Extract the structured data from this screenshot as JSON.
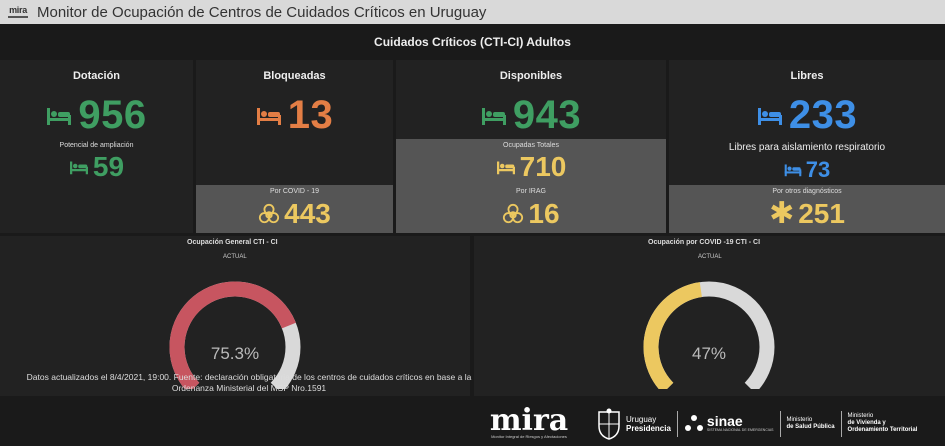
{
  "app": {
    "logo_text": "mira",
    "title": "Monitor de Ocupación de Centros de Cuidados Críticos en Uruguay"
  },
  "dashboard": {
    "header": "Cuidados Críticos (CTI-CI) Adultos",
    "columns": {
      "dotacion": "Dotación",
      "bloqueadas": "Bloqueadas",
      "disponibles": "Disponibles",
      "libres": "Libres"
    },
    "values": {
      "dotacion": "956",
      "bloqueadas": "13",
      "disponibles": "943",
      "libres": "233"
    },
    "ampliacion": {
      "label": "Potencial de ampliación",
      "value": "59"
    },
    "ocupadas": {
      "label": "Ocupadas Totales",
      "value": "710"
    },
    "aislamiento": {
      "label": "Libres para aislamiento respiratorio",
      "value": "73"
    },
    "covid": {
      "label": "Por COVID - 19",
      "value": "443"
    },
    "irag": {
      "label": "Por IRAG",
      "value": "16"
    },
    "otros": {
      "label": "Por otros diagnósticos",
      "value": "251"
    },
    "gauges": [
      {
        "title": "Ocupación General CTI - CI",
        "subtitle": "ACTUAL",
        "value_label": "75.3%",
        "fraction": 0.753,
        "color": "#c75560"
      },
      {
        "title": "Ocupación por COVID -19 CTI - CI",
        "subtitle": "ACTUAL",
        "value_label": "47%",
        "fraction": 0.47,
        "color": "#ecc860"
      }
    ],
    "footnote": "Datos actualizados el 8/4/2021, 19:00. Fuente: declaración obligatoria de los centros de cuidados críticos en base a la Ordenanza Ministerial del MSP Nro.1591"
  },
  "logos": {
    "mira": "mira",
    "mira_caption": "Monitor Integral de Riesgos y Afectaciones",
    "uruguay": "Uruguay",
    "presidencia": "Presidencia",
    "sinae": "sinae",
    "sinae_caption": "SISTEMA NACIONAL DE EMERGENCIAS",
    "msp_1": "Ministerio",
    "msp_2": "de Salud Pública",
    "mvot_1": "Ministerio",
    "mvot_2": "de Vivienda y",
    "mvot_3": "Ordenamiento Territorial"
  },
  "colors": {
    "green": "#3f9e62",
    "orange": "#e37e45",
    "blue": "#3e8fe6",
    "yellow": "#ecc860",
    "gauge_red": "#c75560",
    "gauge_track": "#d9d9d9"
  },
  "icons": [
    "bed-icon",
    "biohazard-icon",
    "asterisk-icon"
  ]
}
